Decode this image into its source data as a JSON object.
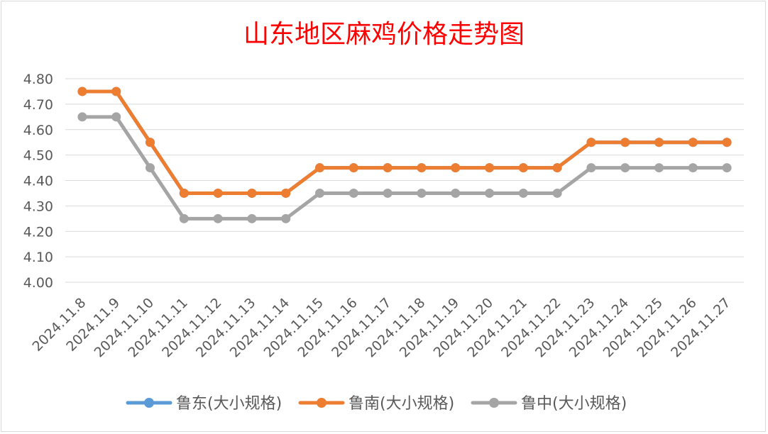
{
  "chart_data": {
    "type": "line",
    "title": "山东地区麻鸡价格走势图",
    "categories": [
      "2024.11.8",
      "2024.11.9",
      "2024.11.10",
      "2024.11.11",
      "2024.11.12",
      "2024.11.13",
      "2024.11.14",
      "2024.11.15",
      "2024.11.16",
      "2024.11.17",
      "2024.11.18",
      "2024.11.19",
      "2024.11.20",
      "2024.11.21",
      "2024.11.22",
      "2024.11.23",
      "2024.11.24",
      "2024.11.25",
      "2024.11.26",
      "2024.11.27"
    ],
    "y_ticks": [
      "4.80",
      "4.70",
      "4.60",
      "4.50",
      "4.40",
      "4.30",
      "4.20",
      "4.10",
      "4.00"
    ],
    "ylim": [
      4.0,
      4.8
    ],
    "grid": true,
    "legend_position": "bottom",
    "series": [
      {
        "name": "鲁东(大小规格)",
        "color": "#5b9bd5",
        "values": [
          4.75,
          4.75,
          4.55,
          4.35,
          4.35,
          4.35,
          4.35,
          4.45,
          4.45,
          4.45,
          4.45,
          4.45,
          4.45,
          4.45,
          4.45,
          4.55,
          4.55,
          4.55,
          4.55,
          4.55
        ]
      },
      {
        "name": "鲁南(大小规格)",
        "color": "#ed7d31",
        "values": [
          4.75,
          4.75,
          4.55,
          4.35,
          4.35,
          4.35,
          4.35,
          4.45,
          4.45,
          4.45,
          4.45,
          4.45,
          4.45,
          4.45,
          4.45,
          4.55,
          4.55,
          4.55,
          4.55,
          4.55
        ]
      },
      {
        "name": "鲁中(大小规格)",
        "color": "#a5a5a5",
        "values": [
          4.65,
          4.65,
          4.45,
          4.25,
          4.25,
          4.25,
          4.25,
          4.35,
          4.35,
          4.35,
          4.35,
          4.35,
          4.35,
          4.35,
          4.35,
          4.45,
          4.45,
          4.45,
          4.45,
          4.45
        ]
      }
    ],
    "title_color": "#ff0000"
  }
}
